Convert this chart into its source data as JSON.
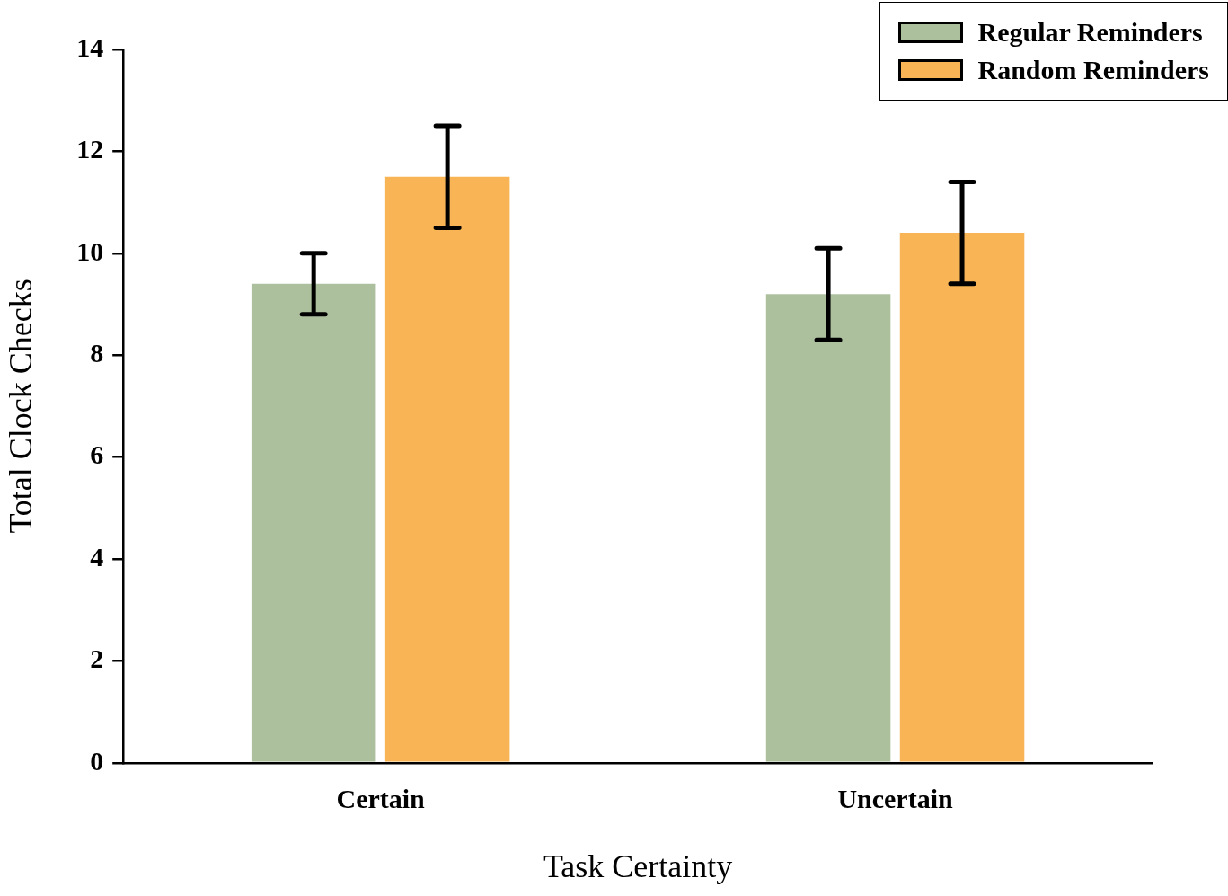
{
  "chart_data": {
    "type": "bar",
    "xlabel": "Task Certainty",
    "ylabel": "Total Clock Checks",
    "categories": [
      "Certain",
      "Uncertain"
    ],
    "series": [
      {
        "name": "Regular Reminders",
        "color": "#adc09e",
        "values": [
          9.4,
          9.2
        ],
        "errors": [
          0.6,
          0.9
        ]
      },
      {
        "name": "Random Reminders",
        "color": "#f9b455",
        "values": [
          11.5,
          10.4
        ],
        "errors": [
          1.0,
          1.0
        ]
      }
    ],
    "ylim": [
      0,
      14
    ],
    "yticks": [
      0,
      2,
      4,
      6,
      8,
      10,
      12,
      14
    ],
    "grid": false,
    "legend": "top right"
  }
}
